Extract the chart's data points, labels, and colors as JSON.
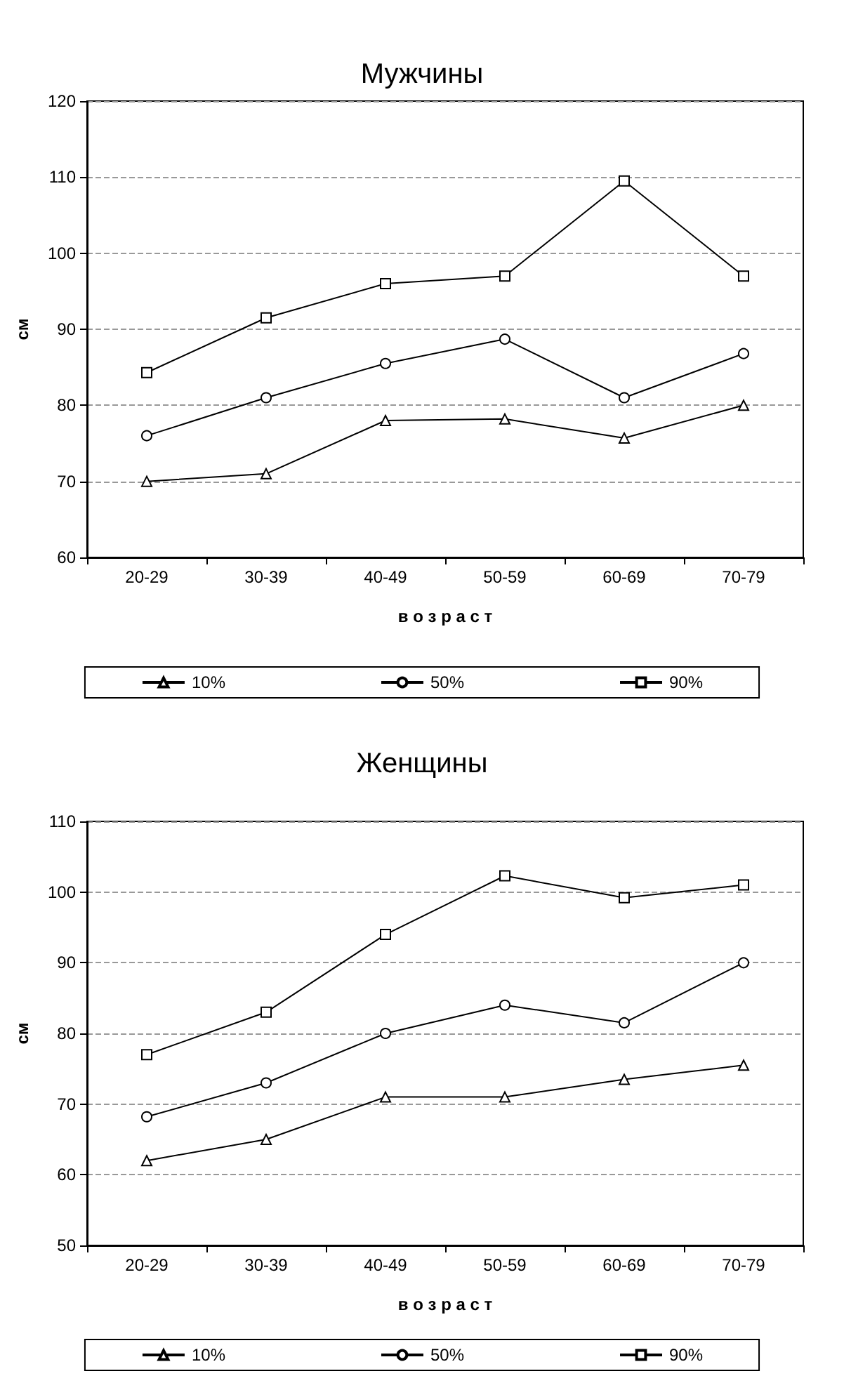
{
  "chart_data": [
    {
      "type": "line",
      "title": "Мужчины",
      "xlabel": "в о з р а с т",
      "ylabel": "см",
      "categories": [
        "20-29",
        "30-39",
        "40-49",
        "50-59",
        "60-69",
        "70-79"
      ],
      "ylim": [
        60,
        120
      ],
      "yticks": [
        60,
        70,
        80,
        90,
        100,
        110,
        120
      ],
      "grid": "y",
      "legend": "bottom",
      "line_style": "solid",
      "series": [
        {
          "name": "10%",
          "color": "#000000",
          "marker": "triangle",
          "values": [
            70,
            71,
            78,
            78.2,
            75.7,
            80
          ]
        },
        {
          "name": "50%",
          "color": "#000000",
          "marker": "circle",
          "values": [
            76,
            81,
            85.5,
            88.7,
            81,
            86.8
          ]
        },
        {
          "name": "90%",
          "color": "#000000",
          "marker": "square",
          "values": [
            84.3,
            91.5,
            96,
            97,
            109.5,
            97
          ]
        }
      ]
    },
    {
      "type": "line",
      "title": "Женщины",
      "xlabel": "в о з р а с т",
      "ylabel": "см",
      "categories": [
        "20-29",
        "30-39",
        "40-49",
        "50-59",
        "60-69",
        "70-79"
      ],
      "ylim": [
        50,
        110
      ],
      "yticks": [
        50,
        60,
        70,
        80,
        90,
        100,
        110
      ],
      "grid": "y",
      "legend": "bottom",
      "line_style": "solid",
      "series": [
        {
          "name": "10%",
          "color": "#000000",
          "marker": "triangle",
          "values": [
            62,
            65,
            71,
            71,
            73.5,
            75.5
          ]
        },
        {
          "name": "50%",
          "color": "#000000",
          "marker": "circle",
          "values": [
            68.2,
            73,
            80,
            84,
            81.5,
            90
          ]
        },
        {
          "name": "90%",
          "color": "#000000",
          "marker": "square",
          "values": [
            77,
            83,
            94,
            102.3,
            99.2,
            101
          ]
        }
      ]
    }
  ]
}
